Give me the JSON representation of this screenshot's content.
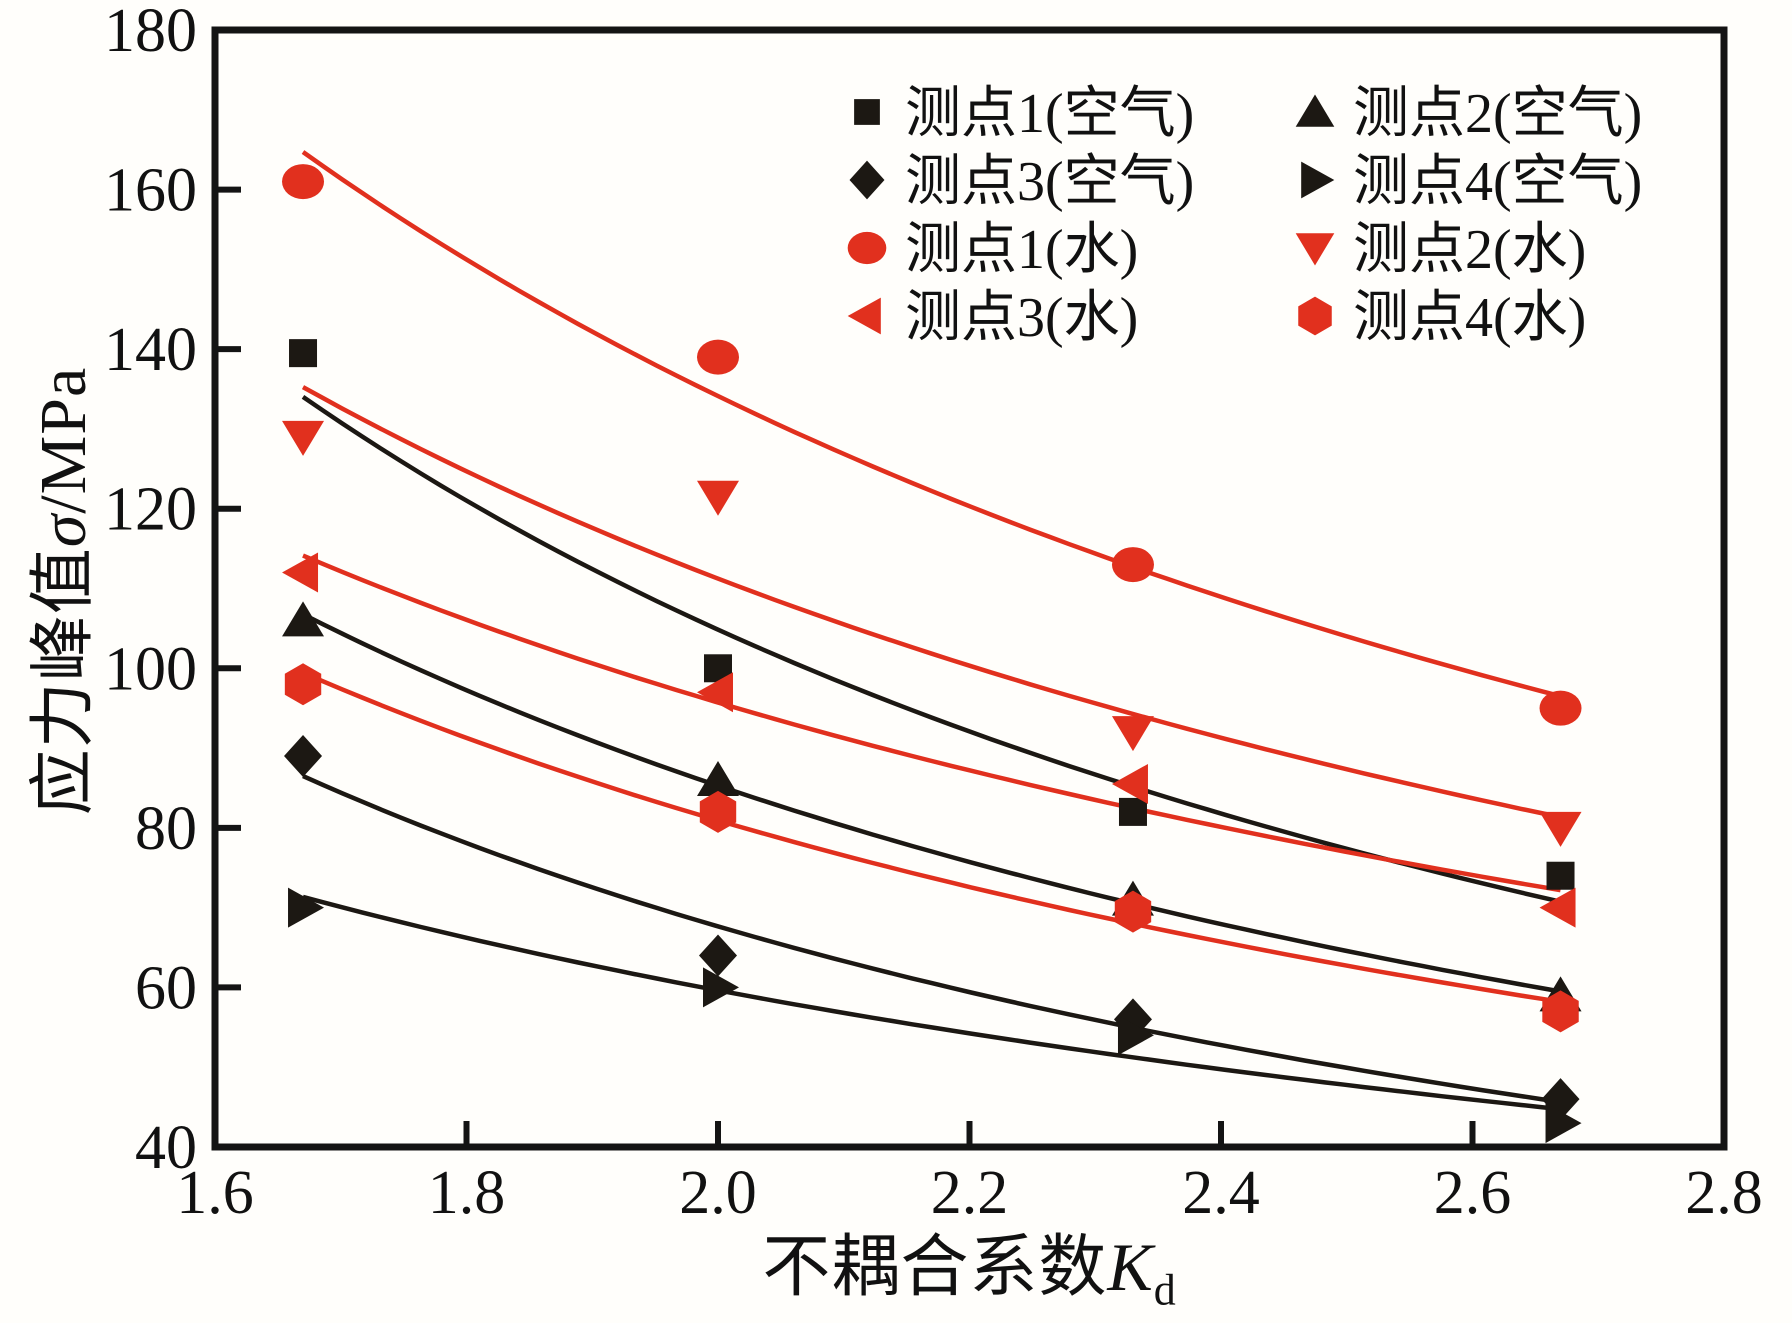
{
  "chart_data": {
    "type": "scatter",
    "x": [
      1.67,
      2.0,
      2.33,
      2.67
    ],
    "series": [
      {
        "name": "测点1(空气)",
        "group": "air",
        "marker": "square",
        "color": "#1c1813",
        "values": [
          139.5,
          100,
          82,
          74
        ]
      },
      {
        "name": "测点2(空气)",
        "group": "air",
        "marker": "triangle-up",
        "color": "#1c1813",
        "values": [
          106,
          86,
          71,
          59
        ]
      },
      {
        "name": "测点3(空气)",
        "group": "air",
        "marker": "diamond",
        "color": "#1c1813",
        "values": [
          89,
          64,
          56,
          46
        ]
      },
      {
        "name": "测点4(空气)",
        "group": "air",
        "marker": "triangle-right",
        "color": "#1c1813",
        "values": [
          70,
          60,
          54,
          43
        ]
      },
      {
        "name": "测点1(水)",
        "group": "water",
        "marker": "circle",
        "color": "#e1301e",
        "values": [
          161,
          139,
          113,
          95
        ]
      },
      {
        "name": "测点2(水)",
        "group": "water",
        "marker": "triangle-down",
        "color": "#e1301e",
        "values": [
          129,
          121.5,
          92,
          80
        ]
      },
      {
        "name": "测点3(水)",
        "group": "water",
        "marker": "triangle-left",
        "color": "#e1301e",
        "values": [
          112,
          97,
          85.5,
          70
        ]
      },
      {
        "name": "测点4(水)",
        "group": "water",
        "marker": "hexagon",
        "color": "#e1301e",
        "values": [
          98,
          82,
          69.5,
          57
        ]
      }
    ],
    "fit": "power-law curve per series (least squares), drawn from x=1.67 to x=2.67",
    "xlabel": {
      "prefix": "不耦合系数",
      "symbol": "K",
      "subscript": "d"
    },
    "ylabel": {
      "prefix": "应力峰值",
      "symbol": "σ",
      "suffix": "/MPa"
    },
    "xlim": [
      1.6,
      2.8
    ],
    "ylim": [
      40,
      180
    ],
    "xtick_labels": [
      "1.6",
      "1.8",
      "2.0",
      "2.2",
      "2.4",
      "2.6",
      "2.8"
    ],
    "ytick_labels": [
      "40",
      "60",
      "80",
      "100",
      "120",
      "140",
      "160",
      "180"
    ],
    "grid": false,
    "legend": {
      "columns": 2,
      "position": "top-right-inside",
      "order_row_major": [
        "测点1(空气)",
        "测点2(空气)",
        "测点3(空气)",
        "测点4(空气)",
        "测点1(水)",
        "测点2(水)",
        "测点3(水)",
        "测点4(水)"
      ]
    },
    "colors": {
      "air_series": "#1c1813",
      "water_series": "#e1301e"
    }
  }
}
